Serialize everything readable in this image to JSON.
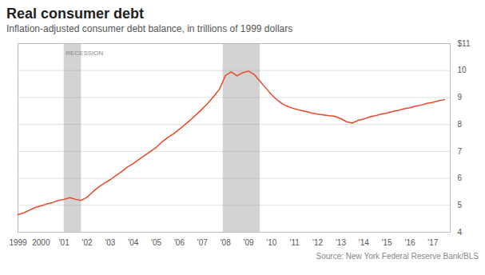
{
  "chart_data": {
    "type": "line",
    "title": "Real consumer debt",
    "subtitle": "Inflation-adjusted consumer debt balance, in trillions of 1999 dollars",
    "source": "Source: New York Federal Reserve Bank/BLS",
    "annotations": [
      {
        "text": "RECESSION",
        "x": 2001.0,
        "y": 10.75
      }
    ],
    "recession": {
      "color": "#d3d3d3",
      "ranges": [
        [
          2001.0,
          2001.75
        ],
        [
          2007.9,
          2009.5
        ]
      ]
    },
    "color": "#e8472a",
    "grid": true,
    "xlim": [
      1999,
      2017.75
    ],
    "xticks": [
      1999,
      2000,
      {
        "value": 2001,
        "label": "'01"
      },
      {
        "value": 2002,
        "label": "'02"
      },
      {
        "value": 2003,
        "label": "'03"
      },
      {
        "value": 2004,
        "label": "'04"
      },
      {
        "value": 2005,
        "label": "'05"
      },
      {
        "value": 2006,
        "label": "'06"
      },
      {
        "value": 2007,
        "label": "'07"
      },
      {
        "value": 2008,
        "label": "'08"
      },
      {
        "value": 2009,
        "label": "'09"
      },
      {
        "value": 2010,
        "label": "'10"
      },
      {
        "value": 2011,
        "label": "'11"
      },
      {
        "value": 2012,
        "label": "'12"
      },
      {
        "value": 2013,
        "label": "'13"
      },
      {
        "value": 2014,
        "label": "'14"
      },
      {
        "value": 2015,
        "label": "'15"
      },
      {
        "value": 2016,
        "label": "'16"
      },
      {
        "value": 2017,
        "label": "'17"
      }
    ],
    "ylim": [
      4,
      11
    ],
    "yticks": [
      4,
      5,
      6,
      7,
      8,
      9,
      10,
      {
        "value": 11,
        "label": "$11"
      }
    ],
    "x": [
      1999.0,
      1999.25,
      1999.5,
      1999.75,
      2000.0,
      2000.25,
      2000.5,
      2000.75,
      2001.0,
      2001.25,
      2001.5,
      2001.75,
      2002.0,
      2002.25,
      2002.5,
      2002.75,
      2003.0,
      2003.25,
      2003.5,
      2003.75,
      2004.0,
      2004.25,
      2004.5,
      2004.75,
      2005.0,
      2005.25,
      2005.5,
      2005.75,
      2006.0,
      2006.25,
      2006.5,
      2006.75,
      2007.0,
      2007.25,
      2007.5,
      2007.75,
      2008.0,
      2008.25,
      2008.5,
      2008.75,
      2009.0,
      2009.25,
      2009.5,
      2009.75,
      2010.0,
      2010.25,
      2010.5,
      2010.75,
      2011.0,
      2011.25,
      2011.5,
      2011.75,
      2012.0,
      2012.25,
      2012.5,
      2012.75,
      2013.0,
      2013.25,
      2013.5,
      2013.75,
      2014.0,
      2014.25,
      2014.5,
      2014.75,
      2015.0,
      2015.25,
      2015.5,
      2015.75,
      2016.0,
      2016.25,
      2016.5,
      2016.75,
      2017.0,
      2017.25,
      2017.5
    ],
    "values": [
      4.65,
      4.72,
      4.82,
      4.92,
      4.98,
      5.05,
      5.1,
      5.18,
      5.22,
      5.28,
      5.22,
      5.18,
      5.3,
      5.5,
      5.68,
      5.82,
      5.95,
      6.1,
      6.25,
      6.42,
      6.55,
      6.7,
      6.85,
      7.0,
      7.15,
      7.35,
      7.52,
      7.65,
      7.82,
      8.0,
      8.18,
      8.38,
      8.58,
      8.8,
      9.05,
      9.32,
      9.82,
      9.95,
      9.8,
      9.92,
      9.98,
      9.85,
      9.6,
      9.35,
      9.1,
      8.9,
      8.75,
      8.65,
      8.58,
      8.52,
      8.48,
      8.42,
      8.38,
      8.35,
      8.32,
      8.3,
      8.22,
      8.1,
      8.05,
      8.15,
      8.2,
      8.28,
      8.32,
      8.38,
      8.42,
      8.48,
      8.52,
      8.58,
      8.62,
      8.68,
      8.72,
      8.78,
      8.82,
      8.88,
      8.92
    ]
  }
}
